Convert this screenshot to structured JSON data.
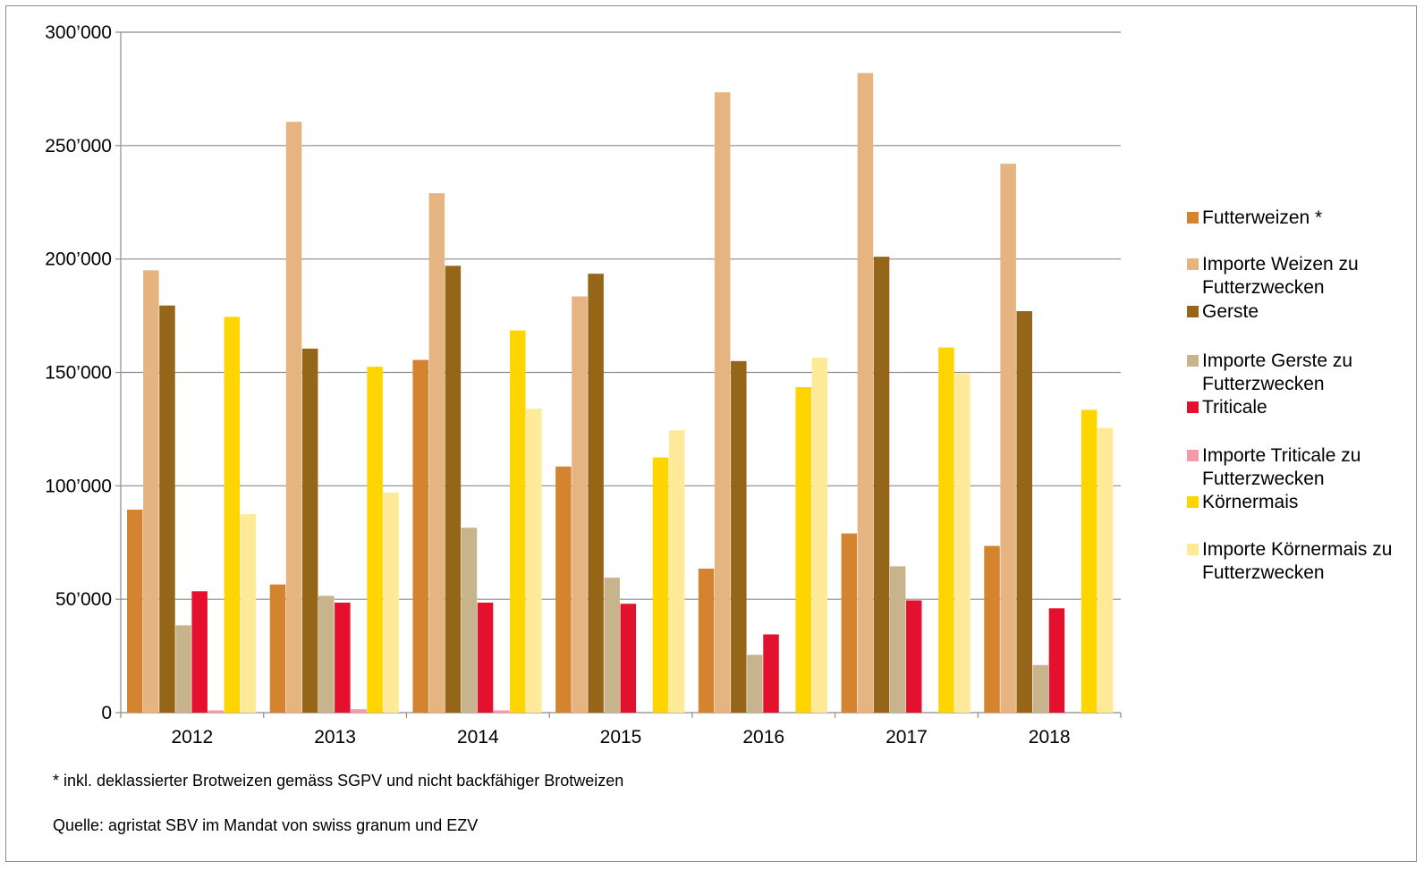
{
  "chart_data": {
    "type": "bar",
    "title": "",
    "xlabel": "",
    "ylabel": "",
    "ylim": [
      0,
      300000
    ],
    "yticks": [
      0,
      50000,
      100000,
      150000,
      200000,
      250000,
      300000
    ],
    "ytick_labels": [
      "0",
      "50’000",
      "100’000",
      "150’000",
      "200’000",
      "250’000",
      "300’000"
    ],
    "grid": "horizontal",
    "legend_position": "right",
    "categories": [
      "2012",
      "2013",
      "2014",
      "2015",
      "2016",
      "2017",
      "2018"
    ],
    "series": [
      {
        "name": "Futterweizen *",
        "color": "#D4832E",
        "values": [
          89500,
          56500,
          155500,
          108500,
          63500,
          79000,
          73500
        ]
      },
      {
        "name": "Importe Weizen zu Futterzwecken",
        "color": "#E6B480",
        "values": [
          195000,
          260500,
          229000,
          183500,
          273500,
          282000,
          242000
        ]
      },
      {
        "name": "Gerste",
        "color": "#956518",
        "values": [
          179500,
          160500,
          197000,
          193500,
          155000,
          201000,
          177000
        ]
      },
      {
        "name": "Importe Gerste zu Futterzwecken",
        "color": "#C8B48C",
        "values": [
          38500,
          51500,
          81500,
          59500,
          25500,
          64500,
          21000
        ]
      },
      {
        "name": "Triticale",
        "color": "#E3102E",
        "values": [
          53500,
          48500,
          48500,
          48000,
          34500,
          49500,
          46000
        ]
      },
      {
        "name": "Importe Triticale zu Futterzwecken",
        "color": "#F29AAA",
        "values": [
          1000,
          1500,
          1000,
          0,
          0,
          0,
          0
        ]
      },
      {
        "name": "Körnermais",
        "color": "#FFD500",
        "values": [
          174500,
          152500,
          168500,
          112500,
          143500,
          161000,
          133500
        ]
      },
      {
        "name": "Importe Körnermais zu Futterzwecken",
        "color": "#FFEA99",
        "values": [
          87500,
          97000,
          134000,
          124500,
          156500,
          149500,
          125500
        ]
      }
    ]
  },
  "footnotes": {
    "note": "* inkl. deklassierter Brotweizen gemäss SGPV und nicht backfähiger Brotweizen",
    "source": "Quelle: agristat SBV im Mandat von swiss granum und EZV"
  }
}
